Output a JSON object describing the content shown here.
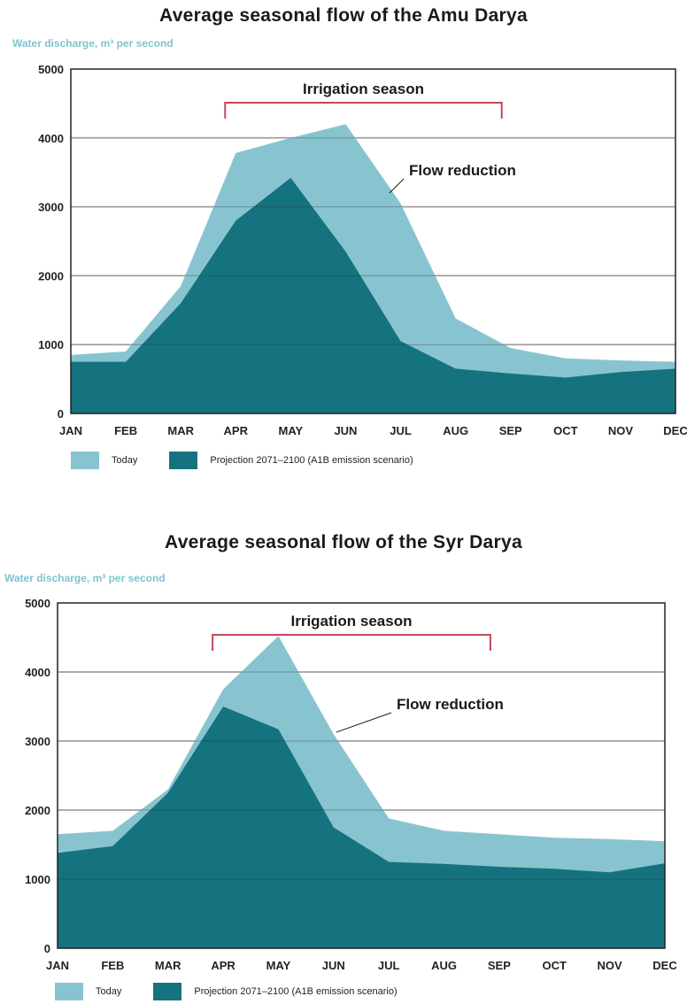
{
  "chart_data": [
    {
      "type": "area",
      "title": "Average seasonal flow of the Amu Darya",
      "ylabel": "Water discharge, m³ per second",
      "categories": [
        "JAN",
        "FEB",
        "MAR",
        "APR",
        "MAY",
        "JUN",
        "JUL",
        "AUG",
        "SEP",
        "OCT",
        "NOV",
        "DEC"
      ],
      "yticks": [
        "0",
        "1000",
        "2000",
        "3000",
        "4000",
        "5000"
      ],
      "ylim": [
        0,
        5000
      ],
      "grid": true,
      "series": [
        {
          "name": "Today",
          "color": "#88c4cf",
          "values": [
            850,
            900,
            1850,
            3780,
            4000,
            4200,
            3050,
            1380,
            950,
            800,
            770,
            750
          ]
        },
        {
          "name": "Projection 2071–2100 (A1B emission scenario)",
          "color": "#15737f",
          "values": [
            750,
            750,
            1600,
            2800,
            3420,
            2350,
            1050,
            650,
            580,
            520,
            600,
            650
          ]
        }
      ],
      "annotations": {
        "irrigation_label": "Irrigation season",
        "irrigation_range": [
          "APR",
          "SEP"
        ],
        "reduction_label": "Flow reduction"
      },
      "legend_placement": "bottom-left"
    },
    {
      "type": "area",
      "title": "Average seasonal flow of the Syr Darya",
      "ylabel": "Water discharge, m³ per second",
      "categories": [
        "JAN",
        "FEB",
        "MAR",
        "APR",
        "MAY",
        "JUN",
        "JUL",
        "AUG",
        "SEP",
        "OCT",
        "NOV",
        "DEC"
      ],
      "yticks": [
        "0",
        "1000",
        "2000",
        "3000",
        "4000",
        "5000"
      ],
      "ylim": [
        0,
        5000
      ],
      "grid": true,
      "series": [
        {
          "name": "Today",
          "color": "#88c4cf",
          "values": [
            1650,
            1700,
            2300,
            3750,
            4520,
            3100,
            1880,
            1700,
            1650,
            1600,
            1580,
            1550
          ]
        },
        {
          "name": "Projection 2071–2100 (A1B emission scenario)",
          "color": "#15737f",
          "values": [
            1380,
            1480,
            2250,
            3500,
            3170,
            1750,
            1250,
            1220,
            1180,
            1150,
            1100,
            1230
          ]
        }
      ],
      "annotations": {
        "irrigation_label": "Irrigation season",
        "irrigation_range": [
          "APR",
          "SEP"
        ],
        "reduction_label": "Flow reduction"
      },
      "legend_placement": "bottom-left"
    }
  ],
  "colors": {
    "grid": "#c8c8c8",
    "bracket": "#c0485a",
    "axis": "#222222"
  }
}
